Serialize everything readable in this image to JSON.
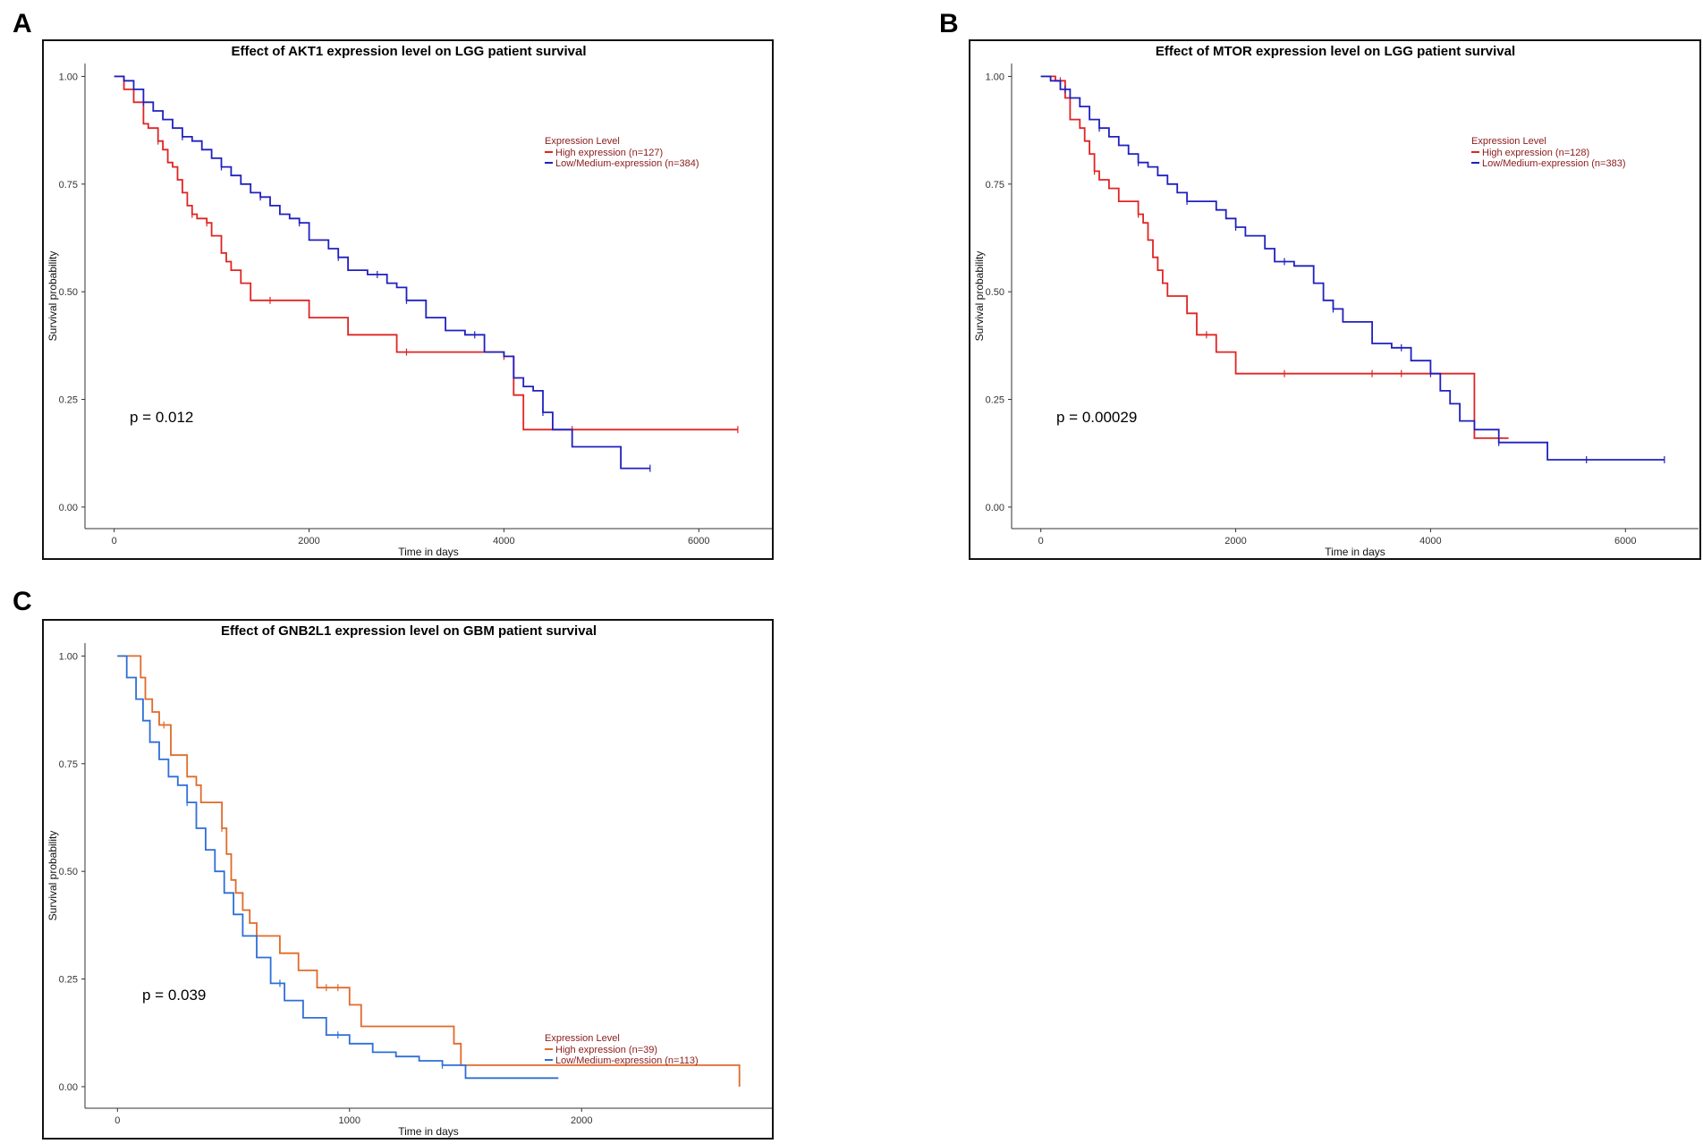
{
  "panels": [
    {
      "letter": "A",
      "title": "Effect of AKT1 expression level on LGG patient survival"
    },
    {
      "letter": "B",
      "title": "Effect of MTOR expression level on LGG patient survival"
    },
    {
      "letter": "C",
      "title": "Effect of GNB2L1 expression level on GBM patient survival"
    }
  ],
  "chart_data": [
    {
      "type": "line",
      "panel": "A",
      "title": "Effect of AKT1 expression level on LGG patient survival",
      "xlabel": "Time in days",
      "ylabel": "Survival probability",
      "xlim": [
        -300,
        6750
      ],
      "ylim": [
        -0.05,
        1.03
      ],
      "xticks": [
        0,
        2000,
        4000,
        6000
      ],
      "yticks": [
        0.0,
        0.25,
        0.5,
        0.75,
        1.0
      ],
      "ytick_labels": [
        "0.00",
        "0.25",
        "0.50",
        "0.75",
        "1.00"
      ],
      "grid": false,
      "pvalue": "p = 0.012",
      "legend": {
        "title": "Expression Level",
        "position": "top-right"
      },
      "series": [
        {
          "name": "High expression (n=127)",
          "color": "#e02424",
          "x": [
            0,
            100,
            200,
            300,
            350,
            450,
            500,
            550,
            600,
            650,
            700,
            750,
            800,
            850,
            900,
            950,
            1000,
            1100,
            1150,
            1200,
            1300,
            1400,
            1600,
            2000,
            2400,
            2900,
            3500,
            4000,
            4100,
            4200,
            4500,
            5000,
            6000,
            6400
          ],
          "y": [
            1.0,
            0.97,
            0.94,
            0.89,
            0.88,
            0.85,
            0.83,
            0.8,
            0.79,
            0.76,
            0.73,
            0.7,
            0.68,
            0.67,
            0.67,
            0.66,
            0.63,
            0.59,
            0.57,
            0.55,
            0.52,
            0.48,
            0.48,
            0.44,
            0.4,
            0.36,
            0.36,
            0.35,
            0.26,
            0.18,
            0.18,
            0.18,
            0.18,
            0.18
          ],
          "censored_x": [
            450,
            800,
            950,
            1600,
            3000,
            4000,
            4700,
            6400
          ]
        },
        {
          "name": "Low/Medium-expression (n=384)",
          "color": "#2020c0",
          "x": [
            0,
            100,
            200,
            300,
            400,
            500,
            600,
            700,
            800,
            900,
            1000,
            1100,
            1200,
            1300,
            1400,
            1500,
            1600,
            1700,
            1800,
            1900,
            2000,
            2200,
            2300,
            2400,
            2600,
            2800,
            2900,
            3000,
            3200,
            3400,
            3600,
            3800,
            4000,
            4100,
            4200,
            4300,
            4400,
            4500,
            4700,
            5000,
            5200,
            5300,
            5500
          ],
          "y": [
            1.0,
            0.99,
            0.97,
            0.94,
            0.92,
            0.9,
            0.88,
            0.86,
            0.85,
            0.83,
            0.81,
            0.79,
            0.77,
            0.75,
            0.73,
            0.72,
            0.7,
            0.68,
            0.67,
            0.66,
            0.62,
            0.6,
            0.58,
            0.55,
            0.54,
            0.52,
            0.51,
            0.48,
            0.44,
            0.41,
            0.4,
            0.36,
            0.35,
            0.3,
            0.28,
            0.27,
            0.22,
            0.18,
            0.14,
            0.14,
            0.09,
            0.09,
            0.09
          ],
          "censored_x": [
            300,
            700,
            1100,
            1500,
            1900,
            2300,
            2700,
            3000,
            3700,
            4400,
            5500
          ]
        }
      ]
    },
    {
      "type": "line",
      "panel": "B",
      "title": "Effect of MTOR expression level on LGG patient survival",
      "xlabel": "Time in days",
      "ylabel": "Survival probability",
      "xlim": [
        -300,
        6750
      ],
      "ylim": [
        -0.05,
        1.03
      ],
      "xticks": [
        0,
        2000,
        4000,
        6000
      ],
      "yticks": [
        0.0,
        0.25,
        0.5,
        0.75,
        1.0
      ],
      "ytick_labels": [
        "0.00",
        "0.25",
        "0.50",
        "0.75",
        "1.00"
      ],
      "grid": false,
      "pvalue": "p = 0.00029",
      "legend": {
        "title": "Expression Level",
        "position": "top-right"
      },
      "series": [
        {
          "name": "High expression (n=128)",
          "color": "#e02424",
          "x": [
            0,
            150,
            250,
            300,
            400,
            450,
            500,
            550,
            600,
            700,
            800,
            900,
            1000,
            1050,
            1100,
            1150,
            1200,
            1250,
            1300,
            1400,
            1500,
            1600,
            1800,
            2000,
            2500,
            3000,
            3500,
            4000,
            4300,
            4450,
            4700,
            4800
          ],
          "y": [
            1.0,
            0.99,
            0.95,
            0.9,
            0.88,
            0.85,
            0.82,
            0.78,
            0.76,
            0.74,
            0.71,
            0.71,
            0.68,
            0.66,
            0.62,
            0.58,
            0.55,
            0.52,
            0.49,
            0.49,
            0.45,
            0.4,
            0.36,
            0.31,
            0.31,
            0.31,
            0.31,
            0.31,
            0.31,
            0.16,
            0.16,
            0.16
          ],
          "censored_x": [
            200,
            550,
            1000,
            1700,
            2500,
            3400,
            3700,
            4700
          ]
        },
        {
          "name": "Low/Medium-expression (n=383)",
          "color": "#2020c0",
          "x": [
            0,
            100,
            200,
            300,
            400,
            500,
            600,
            700,
            800,
            900,
            1000,
            1100,
            1200,
            1300,
            1400,
            1500,
            1600,
            1800,
            1900,
            2000,
            2100,
            2300,
            2400,
            2600,
            2800,
            2900,
            3000,
            3100,
            3200,
            3400,
            3600,
            3800,
            4000,
            4100,
            4200,
            4300,
            4450,
            4700,
            5000,
            5200,
            5600,
            6000,
            6400
          ],
          "y": [
            1.0,
            0.99,
            0.97,
            0.95,
            0.93,
            0.9,
            0.88,
            0.86,
            0.84,
            0.82,
            0.8,
            0.79,
            0.77,
            0.75,
            0.73,
            0.71,
            0.71,
            0.69,
            0.67,
            0.65,
            0.63,
            0.6,
            0.57,
            0.56,
            0.52,
            0.48,
            0.46,
            0.43,
            0.43,
            0.38,
            0.37,
            0.34,
            0.31,
            0.27,
            0.24,
            0.2,
            0.18,
            0.15,
            0.15,
            0.11,
            0.11,
            0.11,
            0.11
          ],
          "censored_x": [
            250,
            600,
            1000,
            1500,
            2000,
            2500,
            3000,
            3700,
            4000,
            4700,
            5600,
            6400
          ]
        }
      ]
    },
    {
      "type": "line",
      "panel": "C",
      "title": "Effect of GNB2L1 expression level on GBM patient survival",
      "xlabel": "Time in days",
      "ylabel": "Survival probability",
      "xlim": [
        -140,
        2820
      ],
      "ylim": [
        -0.05,
        1.03
      ],
      "xticks": [
        0,
        1000,
        2000
      ],
      "yticks": [
        0.0,
        0.25,
        0.5,
        0.75,
        1.0
      ],
      "ytick_labels": [
        "0.00",
        "0.25",
        "0.50",
        "0.75",
        "1.00"
      ],
      "grid": false,
      "pvalue": "p = 0.039",
      "legend": {
        "title": "Expression Level",
        "position": "bottom-right"
      },
      "series": [
        {
          "name": "High expression (n=39)",
          "color": "#e06a2a",
          "x": [
            0,
            80,
            100,
            120,
            150,
            180,
            230,
            300,
            340,
            360,
            400,
            450,
            470,
            490,
            510,
            540,
            570,
            600,
            700,
            780,
            860,
            1000,
            1050,
            1300,
            1450,
            1480,
            1800,
            2000,
            2300,
            2600,
            2680,
            2680
          ],
          "y": [
            1.0,
            1.0,
            0.95,
            0.9,
            0.87,
            0.84,
            0.77,
            0.72,
            0.7,
            0.66,
            0.66,
            0.6,
            0.54,
            0.48,
            0.45,
            0.41,
            0.38,
            0.35,
            0.31,
            0.27,
            0.23,
            0.19,
            0.14,
            0.14,
            0.1,
            0.05,
            0.05,
            0.05,
            0.05,
            0.05,
            0.05,
            0.0
          ],
          "censored_x": [
            200,
            450,
            900,
            950
          ]
        },
        {
          "name": "Low/Medium-expression (n=113)",
          "color": "#2e6fd8",
          "x": [
            0,
            40,
            80,
            110,
            140,
            180,
            220,
            260,
            300,
            340,
            380,
            420,
            460,
            500,
            540,
            600,
            660,
            720,
            800,
            900,
            1000,
            1100,
            1200,
            1300,
            1400,
            1500,
            1700,
            1900
          ],
          "y": [
            1.0,
            0.95,
            0.9,
            0.85,
            0.8,
            0.76,
            0.72,
            0.7,
            0.66,
            0.6,
            0.55,
            0.5,
            0.45,
            0.4,
            0.35,
            0.3,
            0.24,
            0.2,
            0.16,
            0.12,
            0.1,
            0.08,
            0.07,
            0.06,
            0.05,
            0.02,
            0.02,
            0.02
          ],
          "censored_x": [
            300,
            700,
            950,
            1400
          ]
        }
      ]
    }
  ]
}
